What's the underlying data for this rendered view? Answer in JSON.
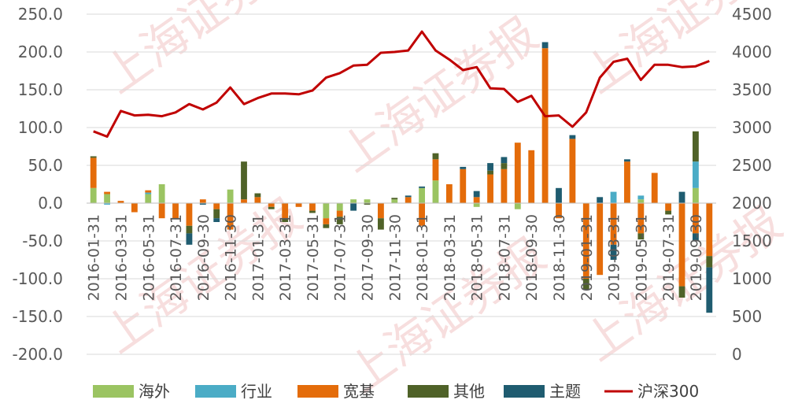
{
  "chart_data": {
    "type": "bar",
    "subtype": "stacked-bar-with-line",
    "colors": {
      "海外": "#9bc462",
      "行业": "#4bacc6",
      "宽基": "#e46c0a",
      "其他": "#4f6228",
      "主题": "#1f5c70",
      "沪深300": "#c00000"
    },
    "categories": [
      "2016-01-31",
      "2016-02-29",
      "2016-03-31",
      "2016-04-30",
      "2016-05-31",
      "2016-06-30",
      "2016-07-31",
      "2016-08-31",
      "2016-09-30",
      "2016-10-31",
      "2016-11-30",
      "2016-12-31",
      "2017-01-31",
      "2017-02-28",
      "2017-03-31",
      "2017-04-30",
      "2017-05-31",
      "2017-06-30",
      "2017-07-31",
      "2017-08-31",
      "2017-09-30",
      "2017-10-31",
      "2017-11-30",
      "2017-12-31",
      "2018-01-31",
      "2018-02-28",
      "2018-03-31",
      "2018-04-30",
      "2018-05-31",
      "2018-06-30",
      "2018-07-31",
      "2018-08-31",
      "2018-09-30",
      "2018-10-31",
      "2018-11-30",
      "2018-12-31",
      "2019-01-31",
      "2019-02-28",
      "2019-03-31",
      "2019-04-30",
      "2019-05-31",
      "2019-06-30",
      "2019-07-31",
      "2019-08-31",
      "2019-09-30",
      "2019-10-31"
    ],
    "x_tick_labels": [
      "2016-01-31",
      "2016-03-31",
      "2016-05-31",
      "2016-07-31",
      "2016-09-30",
      "2016-11-30",
      "2017-01-31",
      "2017-03-31",
      "2017-05-31",
      "2017-07-31",
      "2017-09-30",
      "2017-11-30",
      "2018-01-31",
      "2018-03-31",
      "2018-05-31",
      "2018-07-31",
      "2018-09-30",
      "2018-11-30",
      "2019-01-31",
      "2019-03-31",
      "2019-05-31",
      "2019-07-31",
      "2019-09-30"
    ],
    "series": [
      {
        "name": "海外",
        "axis": "left",
        "values": [
          20,
          12,
          0,
          0,
          12,
          25,
          0,
          0,
          0,
          0,
          18,
          0,
          0,
          0,
          0,
          0,
          0,
          -20,
          -10,
          5,
          5,
          0,
          5,
          0,
          20,
          30,
          0,
          0,
          -5,
          0,
          0,
          -8,
          0,
          0,
          0,
          0,
          0,
          0,
          0,
          0,
          5,
          0,
          0,
          0,
          20,
          0
        ]
      },
      {
        "name": "行业",
        "axis": "left",
        "values": [
          0,
          -2,
          0,
          0,
          2,
          0,
          0,
          0,
          0,
          0,
          0,
          0,
          0,
          0,
          0,
          0,
          0,
          0,
          0,
          0,
          0,
          0,
          0,
          0,
          0,
          0,
          0,
          0,
          0,
          0,
          0,
          0,
          0,
          0,
          0,
          0,
          0,
          0,
          15,
          0,
          5,
          0,
          0,
          0,
          35,
          0
        ]
      },
      {
        "name": "宽基",
        "axis": "left",
        "values": [
          40,
          3,
          3,
          -12,
          3,
          -20,
          -20,
          -30,
          5,
          -8,
          -35,
          5,
          8,
          -5,
          -20,
          -5,
          -10,
          -8,
          -8,
          0,
          0,
          -20,
          0,
          8,
          -30,
          28,
          25,
          45,
          8,
          38,
          45,
          80,
          70,
          205,
          -20,
          85,
          -100,
          -95,
          -55,
          55,
          -40,
          40,
          -10,
          -110,
          -40,
          -70
        ]
      },
      {
        "name": "其他",
        "axis": "left",
        "values": [
          2,
          0,
          0,
          0,
          0,
          0,
          0,
          -10,
          0,
          -12,
          0,
          50,
          5,
          -3,
          -5,
          0,
          -3,
          -5,
          -10,
          0,
          -2,
          -15,
          2,
          0,
          0,
          8,
          0,
          0,
          0,
          5,
          8,
          0,
          0,
          0,
          0,
          0,
          -15,
          0,
          0,
          0,
          -8,
          0,
          -5,
          -15,
          40,
          -15
        ]
      },
      {
        "name": "主题",
        "axis": "left",
        "values": [
          0,
          0,
          0,
          0,
          0,
          0,
          0,
          -15,
          -2,
          -5,
          0,
          0,
          0,
          0,
          0,
          0,
          0,
          0,
          0,
          -10,
          0,
          0,
          0,
          2,
          2,
          0,
          0,
          3,
          8,
          10,
          8,
          0,
          0,
          8,
          20,
          5,
          0,
          8,
          -20,
          3,
          0,
          0,
          0,
          15,
          -10,
          -60
        ]
      },
      {
        "name": "沪深300",
        "axis": "right",
        "type": "line",
        "values": [
          2950,
          2880,
          3220,
          3160,
          3170,
          3150,
          3200,
          3310,
          3240,
          3330,
          3530,
          3310,
          3390,
          3450,
          3450,
          3440,
          3490,
          3660,
          3720,
          3820,
          3830,
          3990,
          4000,
          4020,
          4270,
          4020,
          3900,
          3760,
          3800,
          3520,
          3510,
          3340,
          3420,
          3150,
          3160,
          3010,
          3200,
          3660,
          3870,
          3910,
          3630,
          3830,
          3830,
          3800,
          3810,
          3880
        ]
      }
    ],
    "left_axis": {
      "min": -200,
      "max": 250,
      "step": 50,
      "tick_labels": [
        "250.0",
        "200.0",
        "150.0",
        "100.0",
        "50.0",
        "0.0",
        "-50.0",
        "-100.0",
        "-150.0",
        "-200.0"
      ]
    },
    "right_axis": {
      "min": 0,
      "max": 4500,
      "step": 500,
      "tick_labels": [
        "4500",
        "4000",
        "3500",
        "3000",
        "2500",
        "2000",
        "1500",
        "1000",
        "500",
        "0"
      ]
    },
    "legend": {
      "position": "bottom",
      "items": [
        "海外",
        "行业",
        "宽基",
        "其他",
        "主题",
        "沪深300"
      ]
    },
    "gridlines": true,
    "title": "",
    "xlabel": "",
    "ylabel": ""
  }
}
